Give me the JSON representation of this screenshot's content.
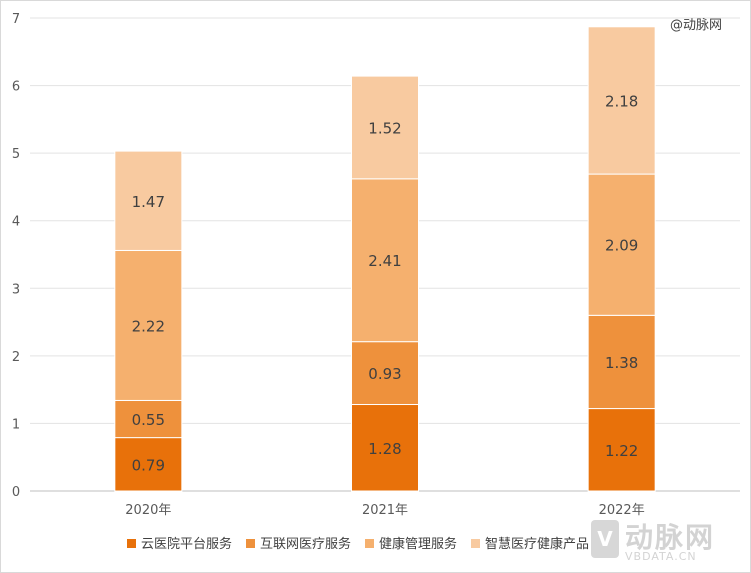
{
  "credit": "@动脉网",
  "watermark": {
    "logo_text": "V",
    "brand": "动脉网",
    "site": "VBDATA.CN"
  },
  "chart_data": {
    "type": "bar",
    "stacked": true,
    "categories": [
      "2020年",
      "2021年",
      "2022年"
    ],
    "series": [
      {
        "name": "云医院平台服务",
        "values": [
          0.79,
          1.28,
          1.22
        ],
        "color": "#e8710a"
      },
      {
        "name": "互联网医疗服务",
        "values": [
          0.55,
          0.93,
          1.38
        ],
        "color": "#ee913c"
      },
      {
        "name": "健康管理服务",
        "values": [
          2.22,
          2.41,
          2.09
        ],
        "color": "#f5b06e"
      },
      {
        "name": "智慧医疗健康产品",
        "values": [
          1.47,
          1.52,
          2.18
        ],
        "color": "#f8caa0"
      }
    ],
    "ylim": [
      0,
      7
    ],
    "yticks": [
      0,
      1,
      2,
      3,
      4,
      5,
      6,
      7
    ],
    "grid": true,
    "legend_position": "bottom"
  }
}
